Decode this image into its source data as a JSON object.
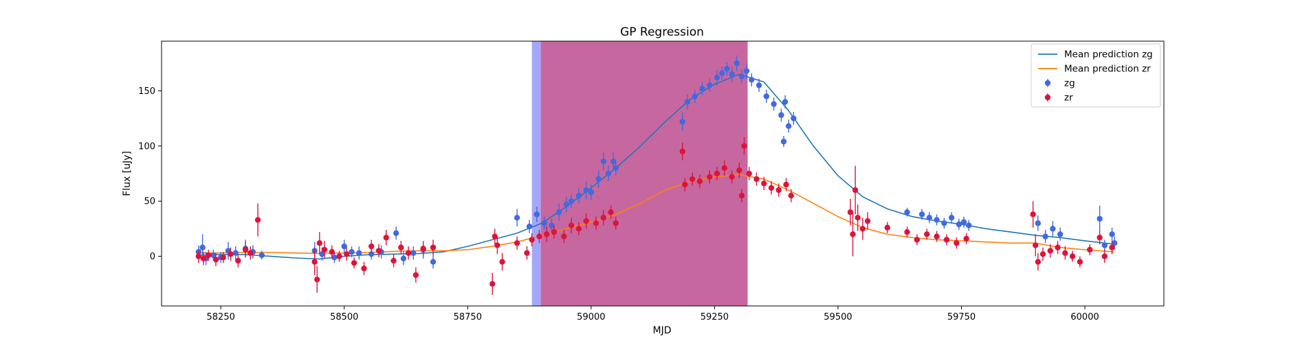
{
  "chart_data": {
    "type": "scatter",
    "title": "GP Regression",
    "xlabel": "MJD",
    "ylabel": "Flux [uJy]",
    "xlim": [
      58130,
      60160
    ],
    "ylim": [
      -45,
      195
    ],
    "xticks": [
      58250,
      58500,
      58750,
      59000,
      59250,
      59500,
      59750,
      60000
    ],
    "yticks": [
      0,
      50,
      100,
      150
    ],
    "grid": false,
    "legend_position": "top-right",
    "shaded_regions": [
      {
        "x": [
          58880,
          58898
        ],
        "color": "#0000ee",
        "opacity": 0.35
      },
      {
        "x": [
          58898,
          59317
        ],
        "color": "#b4347f",
        "opacity": 0.75
      }
    ],
    "series": [
      {
        "name": "Mean prediction zg",
        "kind": "line",
        "color": "#1f77b4",
        "x": [
          58200,
          58250,
          58300,
          58350,
          58400,
          58450,
          58500,
          58550,
          58600,
          58650,
          58700,
          58750,
          58800,
          58850,
          58900,
          58950,
          59000,
          59050,
          59100,
          59150,
          59200,
          59250,
          59300,
          59350,
          59400,
          59450,
          59500,
          59550,
          59600,
          59650,
          59700,
          59750,
          59800,
          59850,
          59900,
          59950,
          60000,
          60060
        ],
        "y": [
          1,
          1.5,
          1.5,
          0,
          -1.5,
          -2.5,
          0,
          1.5,
          2,
          2.5,
          4,
          9,
          15,
          21,
          30,
          45,
          62,
          80,
          100,
          122,
          142,
          156,
          165,
          158,
          132,
          100,
          73,
          54,
          43,
          36,
          32,
          29,
          25,
          22,
          19,
          17,
          14,
          11
        ]
      },
      {
        "name": "Mean prediction zr",
        "kind": "line",
        "color": "#ff7f0e",
        "x": [
          58200,
          58250,
          58300,
          58350,
          58400,
          58450,
          58500,
          58550,
          58600,
          58650,
          58700,
          58750,
          58800,
          58850,
          58900,
          58950,
          59000,
          59050,
          59100,
          59150,
          59200,
          59250,
          59300,
          59350,
          59400,
          59450,
          59500,
          59550,
          59600,
          59650,
          59700,
          59750,
          59800,
          59850,
          59900,
          59950,
          60000,
          60060
        ],
        "y": [
          3,
          3,
          3.5,
          3.5,
          3,
          2.5,
          3,
          3.5,
          4.5,
          5,
          5,
          6,
          9,
          13,
          19,
          25,
          31,
          38,
          48,
          60,
          68,
          72,
          74,
          70,
          60,
          48,
          36,
          26,
          20,
          17,
          15,
          14,
          13,
          12,
          12,
          8,
          6,
          4
        ]
      },
      {
        "name": "zg",
        "kind": "errorbar",
        "color": "#4169e1",
        "points": [
          [
            58205,
            4,
            6
          ],
          [
            58213,
            8,
            12
          ],
          [
            58220,
            -2,
            6
          ],
          [
            58235,
            1,
            5
          ],
          [
            58250,
            -1,
            5
          ],
          [
            58265,
            5,
            8
          ],
          [
            58280,
            3,
            6
          ],
          [
            58300,
            7,
            8
          ],
          [
            58315,
            4,
            6
          ],
          [
            58333,
            1,
            4
          ],
          [
            58440,
            5,
            8
          ],
          [
            58455,
            2,
            6
          ],
          [
            58480,
            -1,
            5
          ],
          [
            58500,
            9,
            6
          ],
          [
            58515,
            4,
            5
          ],
          [
            58530,
            3,
            6
          ],
          [
            58555,
            2,
            5
          ],
          [
            58575,
            4,
            6
          ],
          [
            58605,
            21,
            6
          ],
          [
            58620,
            -2,
            6
          ],
          [
            58640,
            3,
            6
          ],
          [
            58660,
            6,
            8
          ],
          [
            58680,
            -5,
            6
          ],
          [
            58850,
            35,
            8
          ],
          [
            58875,
            27,
            6
          ],
          [
            58890,
            38,
            7
          ],
          [
            58905,
            30,
            6
          ],
          [
            58920,
            28,
            6
          ],
          [
            58935,
            40,
            8
          ],
          [
            58950,
            47,
            7
          ],
          [
            58960,
            50,
            6
          ],
          [
            58975,
            55,
            7
          ],
          [
            58990,
            60,
            8
          ],
          [
            59000,
            58,
            7
          ],
          [
            59015,
            70,
            8
          ],
          [
            59025,
            86,
            8
          ],
          [
            59035,
            75,
            7
          ],
          [
            59045,
            86,
            8
          ],
          [
            59050,
            80,
            7
          ],
          [
            59185,
            122,
            8
          ],
          [
            59195,
            140,
            7
          ],
          [
            59210,
            145,
            6
          ],
          [
            59225,
            152,
            6
          ],
          [
            59240,
            155,
            6
          ],
          [
            59255,
            162,
            7
          ],
          [
            59265,
            166,
            6
          ],
          [
            59275,
            170,
            6
          ],
          [
            59285,
            165,
            7
          ],
          [
            59295,
            175,
            7
          ],
          [
            59305,
            163,
            6
          ],
          [
            59315,
            168,
            7
          ],
          [
            59325,
            160,
            6
          ],
          [
            59340,
            155,
            6
          ],
          [
            59355,
            145,
            6
          ],
          [
            59370,
            138,
            6
          ],
          [
            59385,
            128,
            6
          ],
          [
            59390,
            104,
            5
          ],
          [
            59393,
            140,
            6
          ],
          [
            59400,
            118,
            6
          ],
          [
            59410,
            125,
            6
          ],
          [
            59640,
            40,
            4
          ],
          [
            59670,
            38,
            5
          ],
          [
            59685,
            35,
            5
          ],
          [
            59700,
            33,
            5
          ],
          [
            59715,
            30,
            5
          ],
          [
            59730,
            35,
            5
          ],
          [
            59745,
            29,
            5
          ],
          [
            59755,
            31,
            5
          ],
          [
            59765,
            28,
            5
          ],
          [
            59905,
            30,
            7
          ],
          [
            59920,
            18,
            6
          ],
          [
            59935,
            25,
            7
          ],
          [
            59950,
            20,
            6
          ],
          [
            60030,
            34,
            12
          ],
          [
            60040,
            10,
            5
          ],
          [
            60055,
            20,
            6
          ],
          [
            60060,
            12,
            6
          ]
        ]
      },
      {
        "name": "zr",
        "kind": "errorbar",
        "color": "#dc143c",
        "points": [
          [
            58205,
            0,
            6
          ],
          [
            58215,
            -2,
            6
          ],
          [
            58225,
            1,
            5
          ],
          [
            58240,
            -3,
            6
          ],
          [
            58255,
            -1,
            5
          ],
          [
            58270,
            2,
            6
          ],
          [
            58285,
            -4,
            6
          ],
          [
            58300,
            6,
            7
          ],
          [
            58310,
            3,
            6
          ],
          [
            58325,
            33,
            15
          ],
          [
            58440,
            -5,
            12
          ],
          [
            58445,
            -21,
            12
          ],
          [
            58450,
            12,
            10
          ],
          [
            58460,
            6,
            8
          ],
          [
            58475,
            4,
            6
          ],
          [
            58490,
            0,
            5
          ],
          [
            58505,
            2,
            6
          ],
          [
            58520,
            -6,
            5
          ],
          [
            58540,
            -11,
            6
          ],
          [
            58555,
            9,
            6
          ],
          [
            58570,
            5,
            6
          ],
          [
            58585,
            17,
            7
          ],
          [
            58600,
            -4,
            6
          ],
          [
            58615,
            8,
            6
          ],
          [
            58630,
            3,
            6
          ],
          [
            58645,
            -17,
            7
          ],
          [
            58660,
            7,
            6
          ],
          [
            58680,
            8,
            7
          ],
          [
            58800,
            -25,
            10
          ],
          [
            58805,
            18,
            7
          ],
          [
            58810,
            10,
            8
          ],
          [
            58820,
            -5,
            8
          ],
          [
            58850,
            12,
            6
          ],
          [
            58870,
            3,
            6
          ],
          [
            58880,
            15,
            6
          ],
          [
            58895,
            18,
            6
          ],
          [
            58910,
            20,
            7
          ],
          [
            58925,
            22,
            6
          ],
          [
            58945,
            18,
            6
          ],
          [
            58960,
            28,
            7
          ],
          [
            58975,
            25,
            6
          ],
          [
            58990,
            32,
            7
          ],
          [
            59010,
            30,
            6
          ],
          [
            59025,
            35,
            7
          ],
          [
            59040,
            40,
            6
          ],
          [
            59050,
            30,
            6
          ],
          [
            59185,
            95,
            8
          ],
          [
            59190,
            65,
            6
          ],
          [
            59205,
            70,
            6
          ],
          [
            59220,
            68,
            6
          ],
          [
            59240,
            72,
            6
          ],
          [
            59255,
            75,
            6
          ],
          [
            59270,
            80,
            7
          ],
          [
            59285,
            72,
            6
          ],
          [
            59300,
            78,
            7
          ],
          [
            59305,
            55,
            6
          ],
          [
            59310,
            100,
            8
          ],
          [
            59320,
            75,
            6
          ],
          [
            59335,
            70,
            6
          ],
          [
            59350,
            66,
            6
          ],
          [
            59365,
            62,
            6
          ],
          [
            59380,
            60,
            6
          ],
          [
            59395,
            65,
            6
          ],
          [
            59405,
            55,
            6
          ],
          [
            59525,
            40,
            12
          ],
          [
            59530,
            20,
            20
          ],
          [
            59535,
            60,
            22
          ],
          [
            59540,
            35,
            12
          ],
          [
            59550,
            25,
            10
          ],
          [
            59560,
            32,
            8
          ],
          [
            59600,
            26,
            5
          ],
          [
            59640,
            22,
            5
          ],
          [
            59660,
            15,
            5
          ],
          [
            59680,
            20,
            5
          ],
          [
            59700,
            18,
            5
          ],
          [
            59720,
            15,
            5
          ],
          [
            59740,
            12,
            5
          ],
          [
            59760,
            16,
            5
          ],
          [
            59895,
            38,
            12
          ],
          [
            59900,
            10,
            10
          ],
          [
            59905,
            -5,
            8
          ],
          [
            59915,
            2,
            6
          ],
          [
            59930,
            5,
            6
          ],
          [
            59945,
            8,
            6
          ],
          [
            59960,
            3,
            6
          ],
          [
            59975,
            0,
            5
          ],
          [
            59990,
            -5,
            5
          ],
          [
            60010,
            6,
            5
          ],
          [
            60030,
            17,
            6
          ],
          [
            60040,
            0,
            6
          ],
          [
            60055,
            8,
            6
          ]
        ]
      }
    ]
  }
}
